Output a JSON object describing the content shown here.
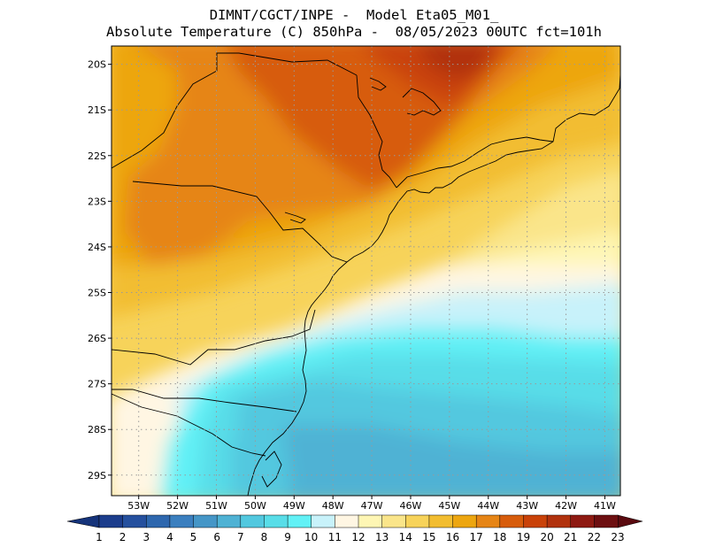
{
  "title": {
    "line1": "DIMNT/CGCT/INPE -  Model Eta05_M01_",
    "line2": "Absolute Temperature (C) 850hPa -  08/05/2023 00UTC fct=101h"
  },
  "map": {
    "lon_range": [
      -53.7,
      -40.6
    ],
    "lat_range": [
      -29.45,
      -19.6
    ],
    "lat_labels": [
      "20S",
      "21S",
      "22S",
      "23S",
      "24S",
      "25S",
      "26S",
      "27S",
      "28S",
      "29S"
    ],
    "lat_values": [
      -20,
      -21,
      -22,
      -23,
      -24,
      -25,
      -26,
      -27,
      -28,
      -29
    ],
    "lon_labels": [
      "53W",
      "52W",
      "51W",
      "50W",
      "49W",
      "48W",
      "47W",
      "46W",
      "45W",
      "44W",
      "43W",
      "42W",
      "41W"
    ],
    "lon_values": [
      -53,
      -52,
      -51,
      -50,
      -49,
      -48,
      -47,
      -46,
      -45,
      -44,
      -43,
      -42,
      -41
    ],
    "grid": true,
    "field": "Absolute Temperature 850hPa (C)"
  },
  "colorbar": {
    "labels": [
      "1",
      "2",
      "3",
      "4",
      "5",
      "6",
      "7",
      "8",
      "9",
      "10",
      "11",
      "12",
      "13",
      "14",
      "15",
      "16",
      "17",
      "18",
      "19",
      "20",
      "21",
      "22",
      "23"
    ],
    "colors": [
      "#1c3d8c",
      "#25509e",
      "#2e67ae",
      "#3b7fbf",
      "#4596c7",
      "#4fb2d4",
      "#52c8df",
      "#58dde8",
      "#62f1f6",
      "#c8f2fa",
      "#fff6e3",
      "#fef6b4",
      "#fae58a",
      "#f7d35a",
      "#f2bd30",
      "#eda610",
      "#e68516",
      "#d75c0c",
      "#c94209",
      "#b1320e",
      "#8e1a12",
      "#6d0f11"
    ],
    "low_color": "#15337a",
    "high_color": "#5a0a0f"
  }
}
